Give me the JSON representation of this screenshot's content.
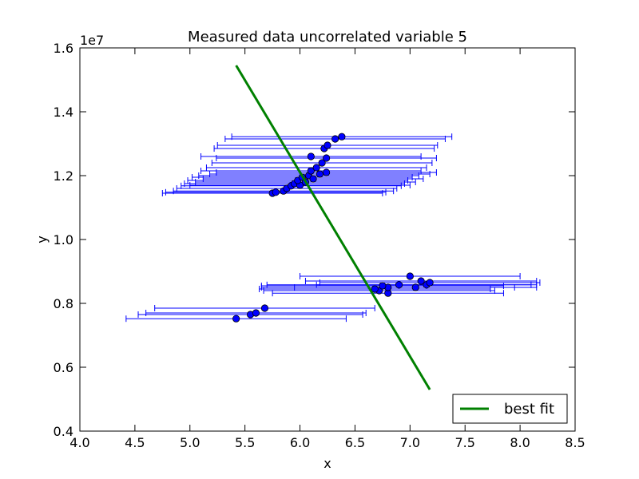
{
  "chart_data": {
    "type": "scatter",
    "title": "Measured data uncorrelated variable 5",
    "xlabel": "x",
    "ylabel": "y",
    "y_scale_label": "1e7",
    "xlim": [
      4.0,
      8.5
    ],
    "ylim": [
      0.4,
      1.6
    ],
    "x_ticks": [
      "4.0",
      "4.5",
      "5.0",
      "5.5",
      "6.0",
      "6.5",
      "7.0",
      "7.5",
      "8.0",
      "8.5"
    ],
    "y_ticks": [
      "0.4",
      "0.6",
      "0.8",
      "1.0",
      "1.2",
      "1.4",
      "1.6"
    ],
    "grid": false,
    "legend": {
      "entries": [
        "best fit"
      ],
      "placement": "lower-right"
    },
    "colors": {
      "points": "#0000ff",
      "errorbars": "#0000ff",
      "fit": "#008000"
    },
    "series": [
      {
        "kind": "points-with-xerr",
        "points": [
          {
            "x": 5.42,
            "y": 0.752,
            "xerr": 1.0
          },
          {
            "x": 5.55,
            "y": 0.765,
            "xerr": 1.02
          },
          {
            "x": 5.6,
            "y": 0.77,
            "xerr": 1.0
          },
          {
            "x": 5.68,
            "y": 0.785,
            "xerr": 1.0
          },
          {
            "x": 6.72,
            "y": 0.84,
            "xerr": 1.05
          },
          {
            "x": 6.8,
            "y": 0.832,
            "xerr": 1.05
          },
          {
            "x": 6.8,
            "y": 0.85,
            "xerr": 1.15
          },
          {
            "x": 6.68,
            "y": 0.845,
            "xerr": 1.05
          },
          {
            "x": 6.75,
            "y": 0.855,
            "xerr": 1.1
          },
          {
            "x": 6.9,
            "y": 0.858,
            "xerr": 1.2
          },
          {
            "x": 7.05,
            "y": 0.85,
            "xerr": 1.1
          },
          {
            "x": 7.1,
            "y": 0.87,
            "xerr": 1.05
          },
          {
            "x": 7.15,
            "y": 0.858,
            "xerr": 1.0
          },
          {
            "x": 7.0,
            "y": 0.885,
            "xerr": 1.0
          },
          {
            "x": 7.18,
            "y": 0.865,
            "xerr": 1.0
          },
          {
            "x": 5.75,
            "y": 1.145,
            "xerr": 1.0
          },
          {
            "x": 5.78,
            "y": 1.148,
            "xerr": 1.0
          },
          {
            "x": 5.85,
            "y": 1.152,
            "xerr": 1.0
          },
          {
            "x": 5.88,
            "y": 1.16,
            "xerr": 1.0
          },
          {
            "x": 5.92,
            "y": 1.168,
            "xerr": 1.0
          },
          {
            "x": 5.95,
            "y": 1.175,
            "xerr": 1.0
          },
          {
            "x": 6.0,
            "y": 1.17,
            "xerr": 1.0
          },
          {
            "x": 5.98,
            "y": 1.185,
            "xerr": 1.0
          },
          {
            "x": 6.02,
            "y": 1.195,
            "xerr": 1.0
          },
          {
            "x": 6.05,
            "y": 1.18,
            "xerr": 1.0
          },
          {
            "x": 6.08,
            "y": 1.2,
            "xerr": 1.0
          },
          {
            "x": 6.1,
            "y": 1.215,
            "xerr": 1.0
          },
          {
            "x": 6.12,
            "y": 1.19,
            "xerr": 1.0
          },
          {
            "x": 6.15,
            "y": 1.225,
            "xerr": 1.0
          },
          {
            "x": 6.18,
            "y": 1.205,
            "xerr": 1.0
          },
          {
            "x": 6.2,
            "y": 1.24,
            "xerr": 1.0
          },
          {
            "x": 6.24,
            "y": 1.21,
            "xerr": 1.0
          },
          {
            "x": 6.1,
            "y": 1.26,
            "xerr": 1.0
          },
          {
            "x": 6.24,
            "y": 1.255,
            "xerr": 1.0
          },
          {
            "x": 6.22,
            "y": 1.285,
            "xerr": 1.0
          },
          {
            "x": 6.25,
            "y": 1.295,
            "xerr": 1.0
          },
          {
            "x": 6.32,
            "y": 1.315,
            "xerr": 1.0
          },
          {
            "x": 6.38,
            "y": 1.322,
            "xerr": 1.0
          }
        ]
      },
      {
        "kind": "line",
        "name": "best fit",
        "x": [
          5.42,
          7.18
        ],
        "y": [
          1.545,
          0.53
        ]
      }
    ]
  }
}
